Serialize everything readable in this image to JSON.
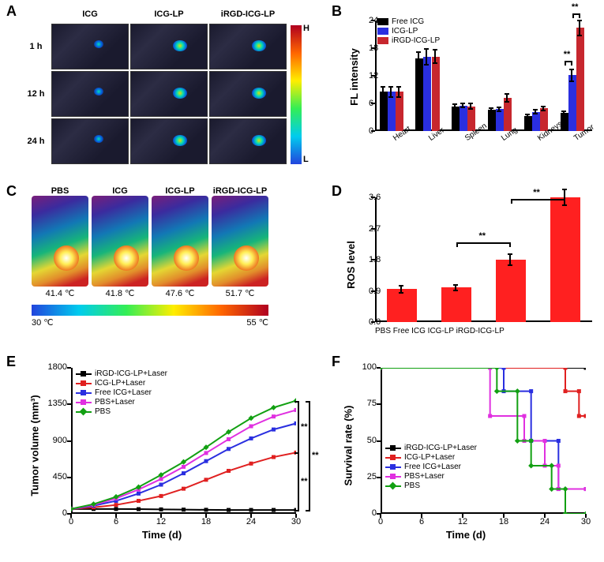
{
  "panelA": {
    "label": "A",
    "columns": [
      "ICG",
      "ICG-LP",
      "iRGD-ICG-LP"
    ],
    "rows": [
      "1 h",
      "12 h",
      "24 h"
    ],
    "colorbar": {
      "high": "H",
      "low": "L"
    }
  },
  "panelB": {
    "label": "B",
    "type": "bar",
    "ylabel": "FL intensity",
    "ylim": [
      0,
      24
    ],
    "ytick_step": 6,
    "categories": [
      "Heart",
      "Liver",
      "Spleen",
      "Lung",
      "Kidneys",
      "Tumor"
    ],
    "series": [
      {
        "name": "Free ICG",
        "color": "#000000",
        "values": [
          8.5,
          15.7,
          5.3,
          4.6,
          3.2,
          3.9
        ],
        "err": [
          1.3,
          1.7,
          0.7,
          0.6,
          0.5,
          0.6
        ]
      },
      {
        "name": "ICG-LP",
        "color": "#2a2fe0",
        "values": [
          8.5,
          16.1,
          5.5,
          4.8,
          4.2,
          12.1
        ],
        "err": [
          1.3,
          1.9,
          0.6,
          0.6,
          0.6,
          1.5
        ]
      },
      {
        "name": "iRGD-ICG-LP",
        "color": "#c7272e",
        "values": [
          8.5,
          16.2,
          5.4,
          7.2,
          4.9,
          22.4
        ],
        "err": [
          1.3,
          1.6,
          0.7,
          1.0,
          0.6,
          1.8
        ]
      }
    ],
    "sig": [
      {
        "group": 5,
        "between": [
          1,
          2
        ],
        "label": "**"
      },
      {
        "group": 5,
        "between": [
          0,
          1
        ],
        "label": "**"
      }
    ]
  },
  "panelC": {
    "label": "C",
    "columns": [
      "PBS",
      "ICG",
      "ICG-LP",
      "iRGD-ICG-LP"
    ],
    "temps": [
      "41.4 ℃",
      "41.8 ℃",
      "47.6 ℃",
      "51.7 ℃"
    ],
    "scale": {
      "min": "30 ℃",
      "max": "55 ℃"
    }
  },
  "panelD": {
    "label": "D",
    "type": "bar",
    "ylabel": "ROS level",
    "ylim": [
      0.0,
      3.6
    ],
    "ytick_step": 0.9,
    "bar_color": "#ff2020",
    "categories_cropped": "PBS    Free ICG    ICG-LP  iRGD-ICG-LP",
    "categories": [
      "PBS",
      "Free ICG",
      "ICG-LP",
      "iRGD-ICG-LP"
    ],
    "values": [
      0.95,
      1.0,
      1.8,
      3.65
    ],
    "err": [
      0.12,
      0.1,
      0.18,
      0.25
    ],
    "sig": [
      {
        "between": [
          1,
          2
        ],
        "label": "**"
      },
      {
        "between": [
          2,
          3
        ],
        "label": "**"
      }
    ]
  },
  "panelE": {
    "label": "E",
    "type": "line",
    "ylabel": "Tumor volume (mm³)",
    "xlabel": "Time (d)",
    "ylim": [
      0,
      1800
    ],
    "ytick_step": 450,
    "xlim": [
      0,
      30
    ],
    "xtick_step": 6,
    "series": [
      {
        "name": "iRGD-ICG-LP+Laser",
        "color": "#000000",
        "marker": "square",
        "values": [
          [
            0,
            60
          ],
          [
            3,
            60
          ],
          [
            6,
            60
          ],
          [
            9,
            58
          ],
          [
            12,
            55
          ],
          [
            15,
            52
          ],
          [
            18,
            50
          ],
          [
            21,
            48
          ],
          [
            24,
            48
          ],
          [
            27,
            48
          ],
          [
            30,
            48
          ]
        ]
      },
      {
        "name": "ICG-LP+Laser",
        "color": "#e02020",
        "marker": "circle",
        "values": [
          [
            0,
            60
          ],
          [
            3,
            80
          ],
          [
            6,
            110
          ],
          [
            9,
            160
          ],
          [
            12,
            220
          ],
          [
            15,
            310
          ],
          [
            18,
            420
          ],
          [
            21,
            530
          ],
          [
            24,
            620
          ],
          [
            27,
            700
          ],
          [
            30,
            755
          ]
        ]
      },
      {
        "name": "Free ICG+Laser",
        "color": "#2a2fe0",
        "marker": "triangle",
        "values": [
          [
            0,
            60
          ],
          [
            3,
            100
          ],
          [
            6,
            160
          ],
          [
            9,
            250
          ],
          [
            12,
            360
          ],
          [
            15,
            500
          ],
          [
            18,
            650
          ],
          [
            21,
            800
          ],
          [
            24,
            930
          ],
          [
            27,
            1040
          ],
          [
            30,
            1115
          ]
        ]
      },
      {
        "name": "PBS+Laser",
        "color": "#e030e0",
        "marker": "star",
        "values": [
          [
            0,
            60
          ],
          [
            3,
            110
          ],
          [
            6,
            190
          ],
          [
            9,
            300
          ],
          [
            12,
            430
          ],
          [
            15,
            580
          ],
          [
            18,
            750
          ],
          [
            21,
            920
          ],
          [
            24,
            1080
          ],
          [
            27,
            1200
          ],
          [
            30,
            1280
          ]
        ]
      },
      {
        "name": "PBS",
        "color": "#12a012",
        "marker": "diamond",
        "values": [
          [
            0,
            60
          ],
          [
            3,
            120
          ],
          [
            6,
            210
          ],
          [
            9,
            330
          ],
          [
            12,
            480
          ],
          [
            15,
            640
          ],
          [
            18,
            820
          ],
          [
            21,
            1010
          ],
          [
            24,
            1180
          ],
          [
            27,
            1310
          ],
          [
            30,
            1395
          ]
        ]
      }
    ],
    "err_bars": true,
    "sig_labels": [
      "**",
      "**",
      "**"
    ]
  },
  "panelF": {
    "label": "F",
    "type": "step",
    "ylabel": "Survival rate (%)",
    "xlabel": "Time (d)",
    "ylim": [
      0,
      100
    ],
    "ytick_step": 25,
    "xlim": [
      0,
      30
    ],
    "xtick_step": 6,
    "series": [
      {
        "name": "iRGD-ICG-LP+Laser",
        "color": "#000000",
        "marker": "square",
        "values": [
          [
            0,
            100
          ],
          [
            30,
            100
          ]
        ]
      },
      {
        "name": "ICG-LP+Laser",
        "color": "#e02020",
        "marker": "circle",
        "values": [
          [
            0,
            100
          ],
          [
            27,
            100
          ],
          [
            27,
            84
          ],
          [
            29,
            84
          ],
          [
            29,
            67
          ],
          [
            30,
            67
          ]
        ]
      },
      {
        "name": "Free ICG+Laser",
        "color": "#2a2fe0",
        "marker": "triangle",
        "values": [
          [
            0,
            100
          ],
          [
            18,
            100
          ],
          [
            18,
            84
          ],
          [
            22,
            84
          ],
          [
            22,
            50
          ],
          [
            26,
            50
          ],
          [
            26,
            17
          ],
          [
            30,
            17
          ]
        ]
      },
      {
        "name": "PBS+Laser",
        "color": "#e030e0",
        "marker": "star",
        "values": [
          [
            0,
            100
          ],
          [
            16,
            100
          ],
          [
            16,
            67
          ],
          [
            21,
            67
          ],
          [
            21,
            50
          ],
          [
            24,
            50
          ],
          [
            24,
            33
          ],
          [
            26,
            33
          ],
          [
            26,
            17
          ],
          [
            30,
            17
          ]
        ]
      },
      {
        "name": "PBS",
        "color": "#12a012",
        "marker": "diamond",
        "values": [
          [
            0,
            100
          ],
          [
            17,
            100
          ],
          [
            17,
            84
          ],
          [
            20,
            84
          ],
          [
            20,
            50
          ],
          [
            22,
            50
          ],
          [
            22,
            33
          ],
          [
            25,
            33
          ],
          [
            25,
            17
          ],
          [
            27,
            17
          ],
          [
            27,
            0
          ],
          [
            30,
            0
          ]
        ]
      }
    ]
  }
}
